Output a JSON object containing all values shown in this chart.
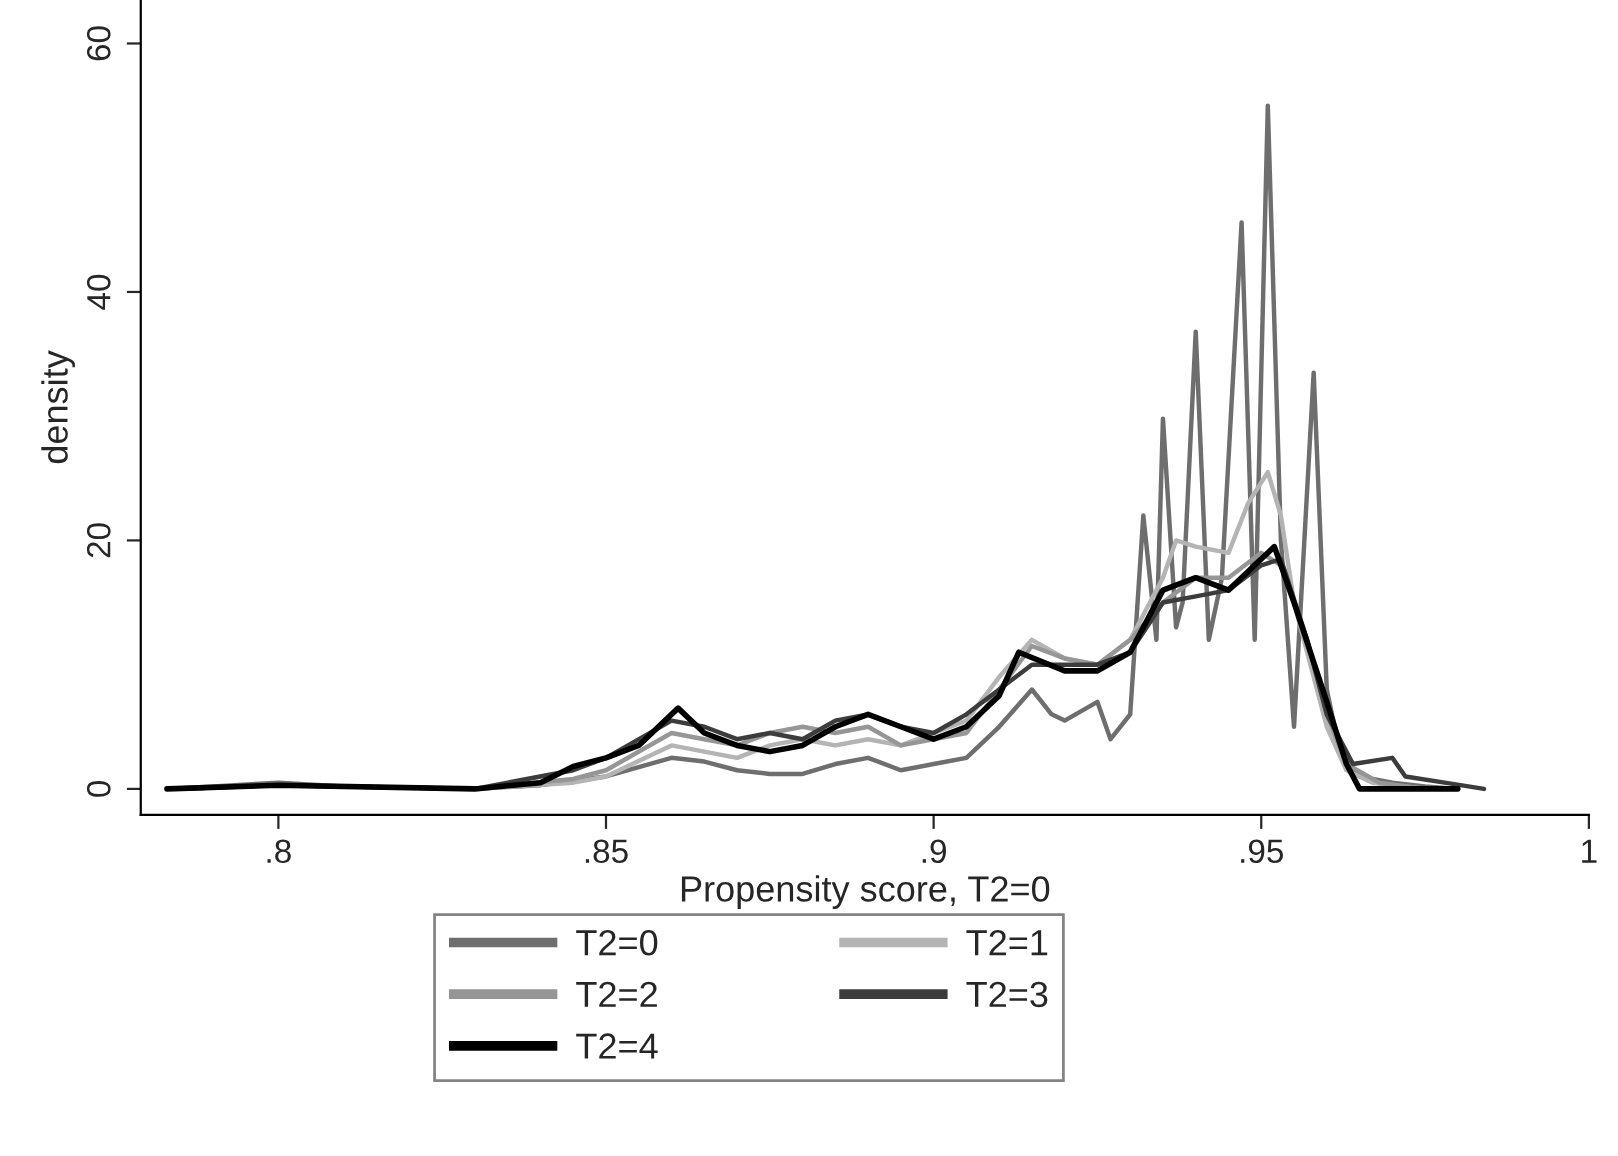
{
  "chart_data": {
    "type": "line",
    "xlabel": "Propensity score, T2=0",
    "ylabel": "density",
    "xlim": [
      0.779,
      1.0
    ],
    "ylim": [
      -2.1,
      63.5
    ],
    "xticks": [
      {
        "value": 0.8,
        "label": ".8"
      },
      {
        "value": 0.85,
        "label": ".85"
      },
      {
        "value": 0.9,
        "label": ".9"
      },
      {
        "value": 0.95,
        "label": ".95"
      },
      1
    ],
    "yticks": [
      0,
      20,
      40,
      60
    ],
    "grid": false,
    "legend": "bottom",
    "marker": "none",
    "line_style": "solid",
    "series": [
      {
        "name": "T2=0",
        "color": "#6e6e6e",
        "x": [
          0.783,
          0.79,
          0.8,
          0.81,
          0.83,
          0.84,
          0.85,
          0.86,
          0.865,
          0.87,
          0.875,
          0.88,
          0.885,
          0.89,
          0.895,
          0.9,
          0.905,
          0.91,
          0.915,
          0.918,
          0.92,
          0.925,
          0.927,
          0.93,
          0.932,
          0.934,
          0.935,
          0.937,
          0.938,
          0.94,
          0.942,
          0.944,
          0.947,
          0.949,
          0.951,
          0.953,
          0.955,
          0.958,
          0.96,
          0.962,
          0.965,
          0.97,
          0.975,
          0.98
        ],
        "values": [
          0,
          0.2,
          0.5,
          0.2,
          0,
          0.3,
          1,
          2.5,
          2.2,
          1.5,
          1.2,
          1.2,
          2,
          2.5,
          1.5,
          2,
          2.5,
          5,
          8,
          6,
          5.5,
          7,
          4,
          6,
          22,
          12,
          29.8,
          13,
          15,
          36.8,
          12,
          17,
          45.6,
          12,
          55,
          20,
          5,
          33.5,
          8,
          3,
          1,
          0.5,
          0.2,
          0
        ]
      },
      {
        "name": "T2=1",
        "color": "#b4b4b4",
        "x": [
          0.785,
          0.8,
          0.83,
          0.845,
          0.85,
          0.86,
          0.865,
          0.87,
          0.875,
          0.88,
          0.885,
          0.89,
          0.895,
          0.9,
          0.905,
          0.91,
          0.915,
          0.92,
          0.925,
          0.93,
          0.935,
          0.937,
          0.94,
          0.945,
          0.948,
          0.951,
          0.953,
          0.955,
          0.96,
          0.963,
          0.967,
          0.975
        ],
        "values": [
          0,
          0.3,
          0,
          0.5,
          1,
          3.5,
          3,
          2.5,
          3.5,
          4,
          3.5,
          4,
          3.5,
          4.5,
          5.5,
          9,
          12,
          10.5,
          10,
          12,
          17,
          20,
          19.5,
          19,
          23,
          25.5,
          22,
          15,
          5,
          1.5,
          0.5,
          0
        ]
      },
      {
        "name": "T2=2",
        "color": "#969696",
        "x": [
          0.785,
          0.8,
          0.83,
          0.845,
          0.85,
          0.86,
          0.865,
          0.87,
          0.875,
          0.88,
          0.885,
          0.89,
          0.895,
          0.9,
          0.905,
          0.91,
          0.915,
          0.92,
          0.925,
          0.93,
          0.935,
          0.94,
          0.945,
          0.95,
          0.953,
          0.957,
          0.96,
          0.963,
          0.968,
          0.975
        ],
        "values": [
          0,
          0.3,
          0,
          0.8,
          1.5,
          4.5,
          4,
          3.5,
          4.5,
          5,
          4.5,
          5,
          3.5,
          4,
          4.5,
          8,
          11.5,
          10.5,
          10,
          12,
          15,
          17,
          17,
          19,
          18,
          12,
          6,
          2,
          0.5,
          0
        ]
      },
      {
        "name": "T2=3",
        "color": "#3c3c3c",
        "x": [
          0.785,
          0.8,
          0.83,
          0.845,
          0.85,
          0.86,
          0.865,
          0.87,
          0.875,
          0.88,
          0.885,
          0.89,
          0.895,
          0.9,
          0.905,
          0.91,
          0.915,
          0.92,
          0.925,
          0.93,
          0.935,
          0.94,
          0.945,
          0.95,
          0.953,
          0.957,
          0.96,
          0.964,
          0.97,
          0.972,
          0.978,
          0.984
        ],
        "values": [
          0,
          0.3,
          0,
          1.5,
          2.5,
          5.5,
          5,
          4,
          4.5,
          4,
          5.5,
          6,
          5,
          4.5,
          6,
          8,
          10,
          10,
          10,
          11,
          15,
          15.5,
          16,
          18,
          18.5,
          12,
          6,
          2,
          2.5,
          1,
          0.5,
          0
        ]
      },
      {
        "name": "T2=4",
        "color": "#000000",
        "x": [
          0.783,
          0.8,
          0.83,
          0.84,
          0.845,
          0.85,
          0.855,
          0.861,
          0.865,
          0.87,
          0.875,
          0.88,
          0.885,
          0.89,
          0.895,
          0.9,
          0.905,
          0.91,
          0.913,
          0.92,
          0.925,
          0.93,
          0.935,
          0.94,
          0.945,
          0.95,
          0.952,
          0.955,
          0.96,
          0.963,
          0.965,
          0.98
        ],
        "values": [
          0,
          0.3,
          0,
          0.5,
          1.8,
          2.5,
          3.5,
          6.5,
          4.5,
          3.5,
          3,
          3.5,
          5,
          6,
          5,
          4,
          5,
          7.5,
          11,
          9.5,
          9.5,
          11,
          16,
          17,
          16,
          18.5,
          19.5,
          15,
          7,
          2,
          0,
          0
        ]
      }
    ]
  }
}
